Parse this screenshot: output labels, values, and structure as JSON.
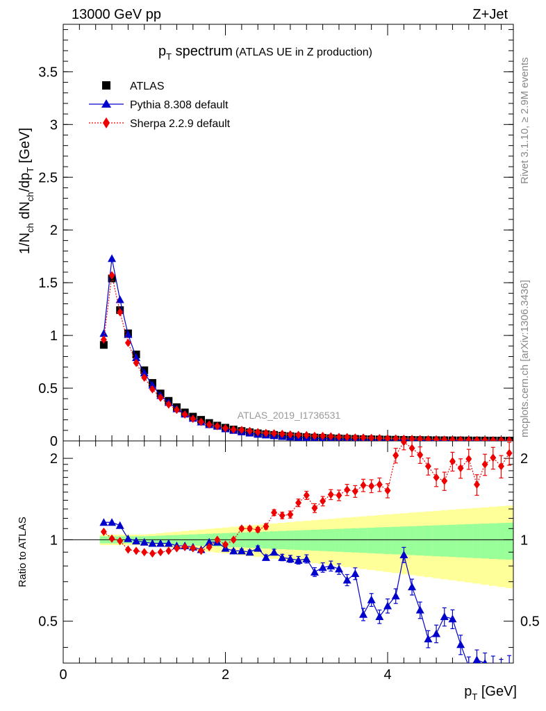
{
  "header": {
    "left": "13000 GeV pp",
    "right": "Z+Jet"
  },
  "plot_title": {
    "main": "p",
    "main_sub": "T",
    "main_rest": " spectrum",
    "paren": "(ATLAS UE in Z production)"
  },
  "watermark": "ATLAS_2019_I1736531",
  "side_labels": {
    "rivet": "Rivet 3.1.10, ≥ 2.9M events",
    "mcplots": "mcplots.cern.ch [arXiv:1306.3436]"
  },
  "legend": [
    {
      "label": "ATLAS",
      "marker": "square",
      "color": "#000000"
    },
    {
      "label": "Pythia 8.308 default",
      "marker": "triangle",
      "color": "#0000cc"
    },
    {
      "label": "Sherpa 2.2.9 default",
      "marker": "diamond",
      "color": "#ee0000"
    }
  ],
  "axis_labels": {
    "y_main": "1/N_ch dN_ch/dp_T [GeV]",
    "y_ratio": "Ratio to ATLAS",
    "x": "p_T [GeV]"
  },
  "chart_data": [
    {
      "type": "scatter",
      "panel": "main",
      "xlim": [
        0,
        5.55
      ],
      "ylim": [
        0,
        3.95
      ],
      "x_ticks": [
        "0",
        "2",
        "4"
      ],
      "y_ticks": [
        "0",
        "0.5",
        "1",
        "1.5",
        "2",
        "2.5",
        "3",
        "3.5"
      ],
      "x": [
        0.5,
        0.6,
        0.7,
        0.8,
        0.9,
        1.0,
        1.1,
        1.2,
        1.3,
        1.4,
        1.5,
        1.6,
        1.7,
        1.8,
        1.9,
        2.0,
        2.1,
        2.2,
        2.3,
        2.4,
        2.5,
        2.6,
        2.7,
        2.8,
        2.9,
        3.0,
        3.1,
        3.2,
        3.3,
        3.4,
        3.5,
        3.6,
        3.7,
        3.8,
        3.9,
        4.0,
        4.1,
        4.2,
        4.3,
        4.4,
        4.5,
        4.6,
        4.7,
        4.8,
        4.9,
        5.0,
        5.1,
        5.2,
        5.3,
        5.4,
        5.5
      ],
      "series": [
        {
          "name": "ATLAS",
          "values": [
            0.91,
            1.54,
            1.24,
            1.02,
            0.82,
            0.67,
            0.55,
            0.45,
            0.38,
            0.32,
            0.27,
            0.23,
            0.2,
            0.17,
            0.145,
            0.125,
            0.108,
            0.094,
            0.082,
            0.072,
            0.064,
            0.057,
            0.05,
            0.045,
            0.04,
            0.036,
            0.032,
            0.029,
            0.026,
            0.023,
            0.021,
            0.019,
            0.017,
            0.0155,
            0.014,
            0.0126,
            0.0114,
            0.0103,
            0.0093,
            0.0084,
            0.0076,
            0.0069,
            0.0062,
            0.0056,
            0.0051,
            0.0046,
            0.0042,
            0.0038,
            0.0034,
            0.0031,
            0.0028
          ]
        },
        {
          "name": "Pythia 8.308 default",
          "values": [
            1.02,
            1.73,
            1.34,
            1.01,
            0.79,
            0.645,
            0.53,
            0.43,
            0.365,
            0.305,
            0.255,
            0.215,
            0.18,
            0.155,
            0.14,
            0.115,
            0.1,
            0.086,
            0.075,
            0.063,
            0.057,
            0.05,
            0.043,
            0.038,
            0.034,
            0.031,
            0.025,
            0.023,
            0.021,
            0.018,
            0.016,
            0.014,
            0.012,
            0.011,
            0.009,
            0.0075,
            0.007,
            0.009,
            0.006,
            0.0045,
            0.0032,
            0.0031,
            0.0031,
            0.0028,
            0.0025,
            0.0018,
            0.0016,
            0.0015,
            0.0013,
            0.0012,
            0.001
          ]
        },
        {
          "name": "Sherpa 2.2.9 default",
          "values": [
            0.96,
            1.57,
            1.22,
            0.93,
            0.74,
            0.6,
            0.49,
            0.41,
            0.345,
            0.295,
            0.25,
            0.21,
            0.18,
            0.155,
            0.14,
            0.12,
            0.108,
            0.104,
            0.095,
            0.083,
            0.075,
            0.072,
            0.067,
            0.061,
            0.057,
            0.054,
            0.048,
            0.047,
            0.043,
            0.038,
            0.036,
            0.032,
            0.031,
            0.028,
            0.026,
            0.023,
            0.022,
            0.02,
            0.019,
            0.017,
            0.015,
            0.013,
            0.012,
            0.01,
            0.0095,
            0.0088,
            0.0084,
            0.0075,
            0.0068,
            0.0062,
            0.0058
          ]
        }
      ]
    },
    {
      "type": "scatter",
      "panel": "ratio",
      "xlim": [
        0,
        5.55
      ],
      "ylim": [
        0.35,
        2.32
      ],
      "x_ticks": [
        "0",
        "2",
        "4"
      ],
      "y_ticks": [
        "0.5",
        "1",
        "2"
      ],
      "reference_line": 1,
      "x": [
        0.5,
        0.6,
        0.7,
        0.8,
        0.9,
        1.0,
        1.1,
        1.2,
        1.3,
        1.4,
        1.5,
        1.6,
        1.7,
        1.8,
        1.9,
        2.0,
        2.1,
        2.2,
        2.3,
        2.4,
        2.5,
        2.6,
        2.7,
        2.8,
        2.9,
        3.0,
        3.1,
        3.2,
        3.3,
        3.4,
        3.5,
        3.6,
        3.7,
        3.8,
        3.9,
        4.0,
        4.1,
        4.2,
        4.3,
        4.4,
        4.5,
        4.6,
        4.7,
        4.8,
        4.9,
        5.0,
        5.1,
        5.2,
        5.3,
        5.4,
        5.5
      ],
      "series": [
        {
          "name": "Pythia 8.308 default",
          "values": [
            1.16,
            1.16,
            1.13,
            1.01,
            0.99,
            0.98,
            0.97,
            0.97,
            0.97,
            0.95,
            0.95,
            0.94,
            0.92,
            0.98,
            0.98,
            0.93,
            0.91,
            0.91,
            0.9,
            0.93,
            0.86,
            0.9,
            0.86,
            0.85,
            0.84,
            0.85,
            0.76,
            0.79,
            0.8,
            0.78,
            0.71,
            0.75,
            0.53,
            0.6,
            0.52,
            0.57,
            0.62,
            0.88,
            0.67,
            0.55,
            0.43,
            0.45,
            0.52,
            0.51,
            0.41,
            0.34,
            0.36,
            0.35,
            0.34,
            0.33,
            0.34
          ]
        },
        {
          "name": "Sherpa 2.2.9 default",
          "values": [
            1.07,
            1.01,
            0.99,
            0.92,
            0.91,
            0.9,
            0.89,
            0.9,
            0.91,
            0.93,
            0.94,
            0.93,
            0.91,
            0.94,
            1.0,
            0.96,
            1.0,
            1.1,
            1.1,
            1.09,
            1.12,
            1.26,
            1.23,
            1.24,
            1.37,
            1.46,
            1.31,
            1.39,
            1.47,
            1.46,
            1.53,
            1.51,
            1.59,
            1.58,
            1.6,
            1.52,
            2.05,
            2.3,
            2.18,
            2.06,
            1.87,
            1.7,
            1.65,
            1.95,
            1.84,
            1.99,
            1.6,
            1.9,
            2.01,
            1.87,
            2.09
          ]
        }
      ]
    }
  ]
}
